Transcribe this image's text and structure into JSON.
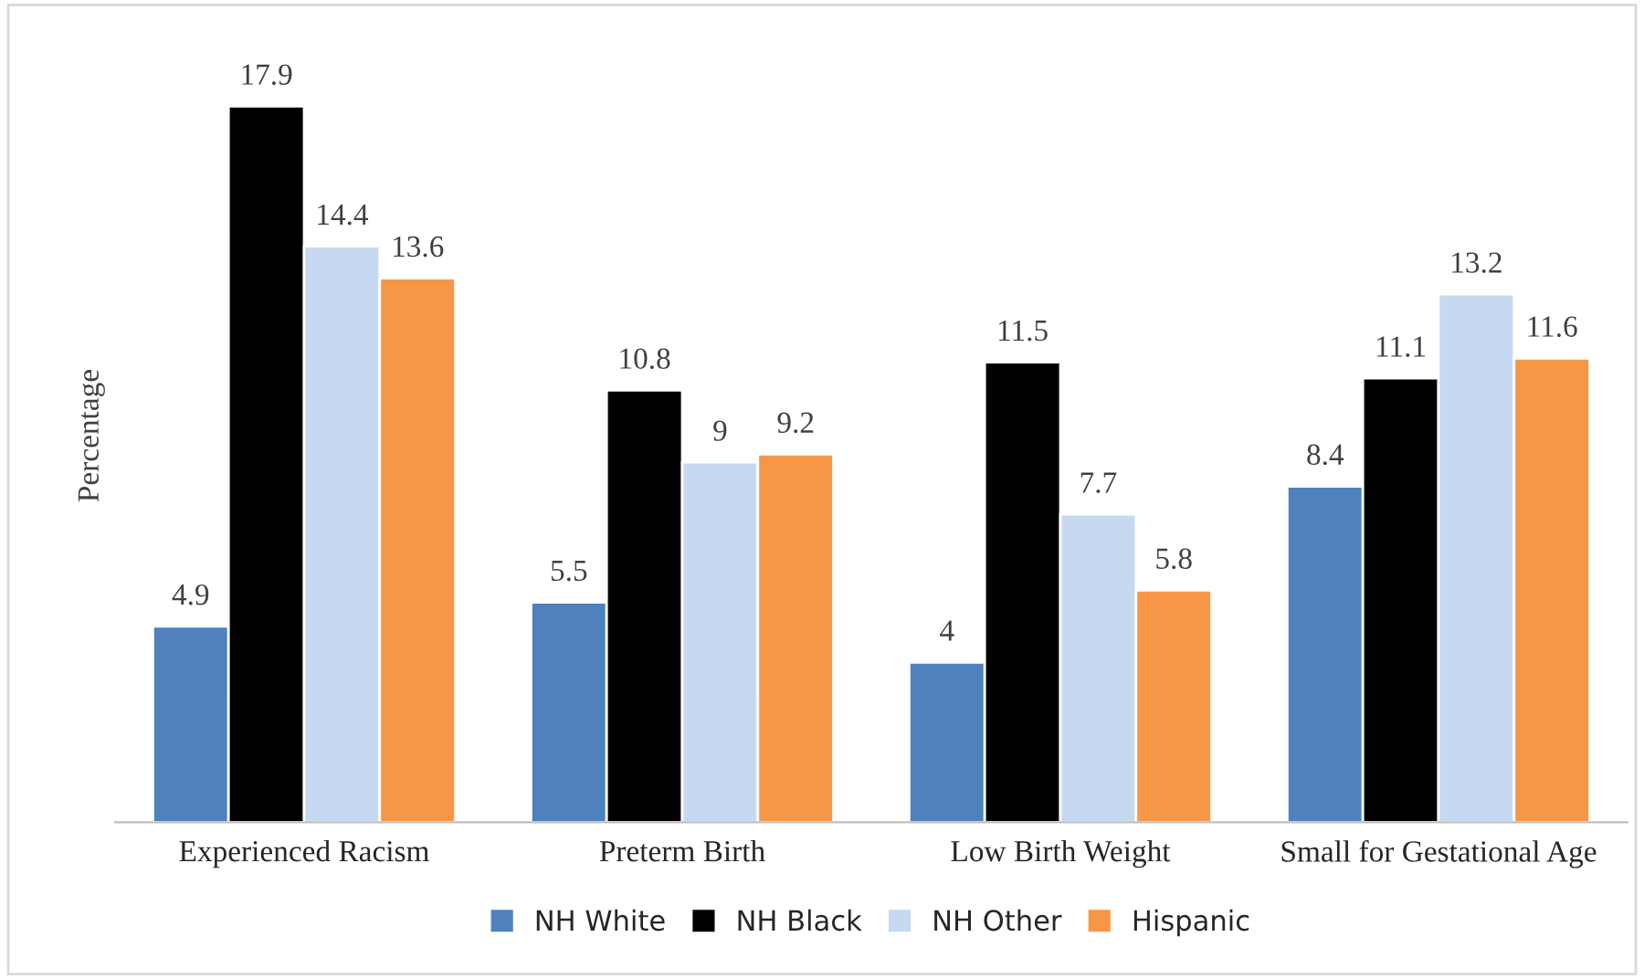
{
  "chart_data": {
    "type": "bar",
    "ylabel": "Percentage",
    "categories": [
      "Experienced Racism",
      "Preterm Birth",
      "Low Birth Weight",
      "Small for Gestational Age"
    ],
    "series": [
      {
        "name": "NH White",
        "color": "#4f81bd",
        "values": [
          4.9,
          5.5,
          4,
          8.4
        ]
      },
      {
        "name": "NH Black",
        "color": "#000000",
        "values": [
          17.9,
          10.8,
          11.5,
          11.1
        ]
      },
      {
        "name": "NH Other",
        "color": "#c6d9f1",
        "values": [
          14.4,
          9,
          7.7,
          13.2
        ]
      },
      {
        "name": "Hispanic",
        "color": "#f79646",
        "values": [
          13.6,
          9.2,
          5.8,
          11.6
        ]
      }
    ],
    "data_labels": true,
    "legend": "bottom",
    "tick_labels": "x"
  }
}
